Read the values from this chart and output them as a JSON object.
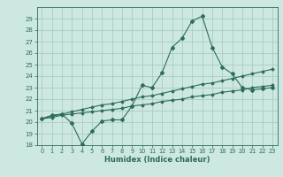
{
  "xlabel": "Humidex (Indice chaleur)",
  "x_values": [
    0,
    1,
    2,
    3,
    4,
    5,
    6,
    7,
    8,
    9,
    10,
    11,
    12,
    13,
    14,
    15,
    16,
    17,
    18,
    19,
    20,
    21,
    22,
    23
  ],
  "line1_y": [
    20.3,
    20.6,
    20.7,
    19.9,
    18.1,
    19.2,
    20.1,
    20.2,
    20.2,
    21.4,
    23.2,
    23.0,
    24.3,
    26.5,
    27.3,
    28.8,
    29.2,
    26.5,
    24.8,
    24.2,
    23.0,
    22.8,
    22.9,
    23.0
  ],
  "line2_y": [
    20.3,
    20.5,
    20.7,
    20.9,
    21.1,
    21.3,
    21.5,
    21.6,
    21.8,
    22.0,
    22.2,
    22.3,
    22.5,
    22.7,
    22.9,
    23.1,
    23.3,
    23.4,
    23.6,
    23.8,
    24.0,
    24.2,
    24.4,
    24.6
  ],
  "line3_y": [
    20.3,
    20.4,
    20.6,
    20.7,
    20.8,
    20.9,
    21.0,
    21.1,
    21.2,
    21.4,
    21.5,
    21.6,
    21.8,
    21.9,
    22.0,
    22.2,
    22.3,
    22.4,
    22.6,
    22.7,
    22.8,
    23.0,
    23.1,
    23.2
  ],
  "line_color": "#2e6b5e",
  "bg_color": "#cce8e0",
  "grid_color": "#aaccC4",
  "ylim": [
    18,
    30
  ],
  "yticks": [
    18,
    19,
    20,
    21,
    22,
    23,
    24,
    25,
    26,
    27,
    28,
    29
  ],
  "xticks": [
    0,
    1,
    2,
    3,
    4,
    5,
    6,
    7,
    8,
    9,
    10,
    11,
    12,
    13,
    14,
    15,
    16,
    17,
    18,
    19,
    20,
    21,
    22,
    23
  ],
  "xlim": [
    -0.5,
    23.5
  ]
}
